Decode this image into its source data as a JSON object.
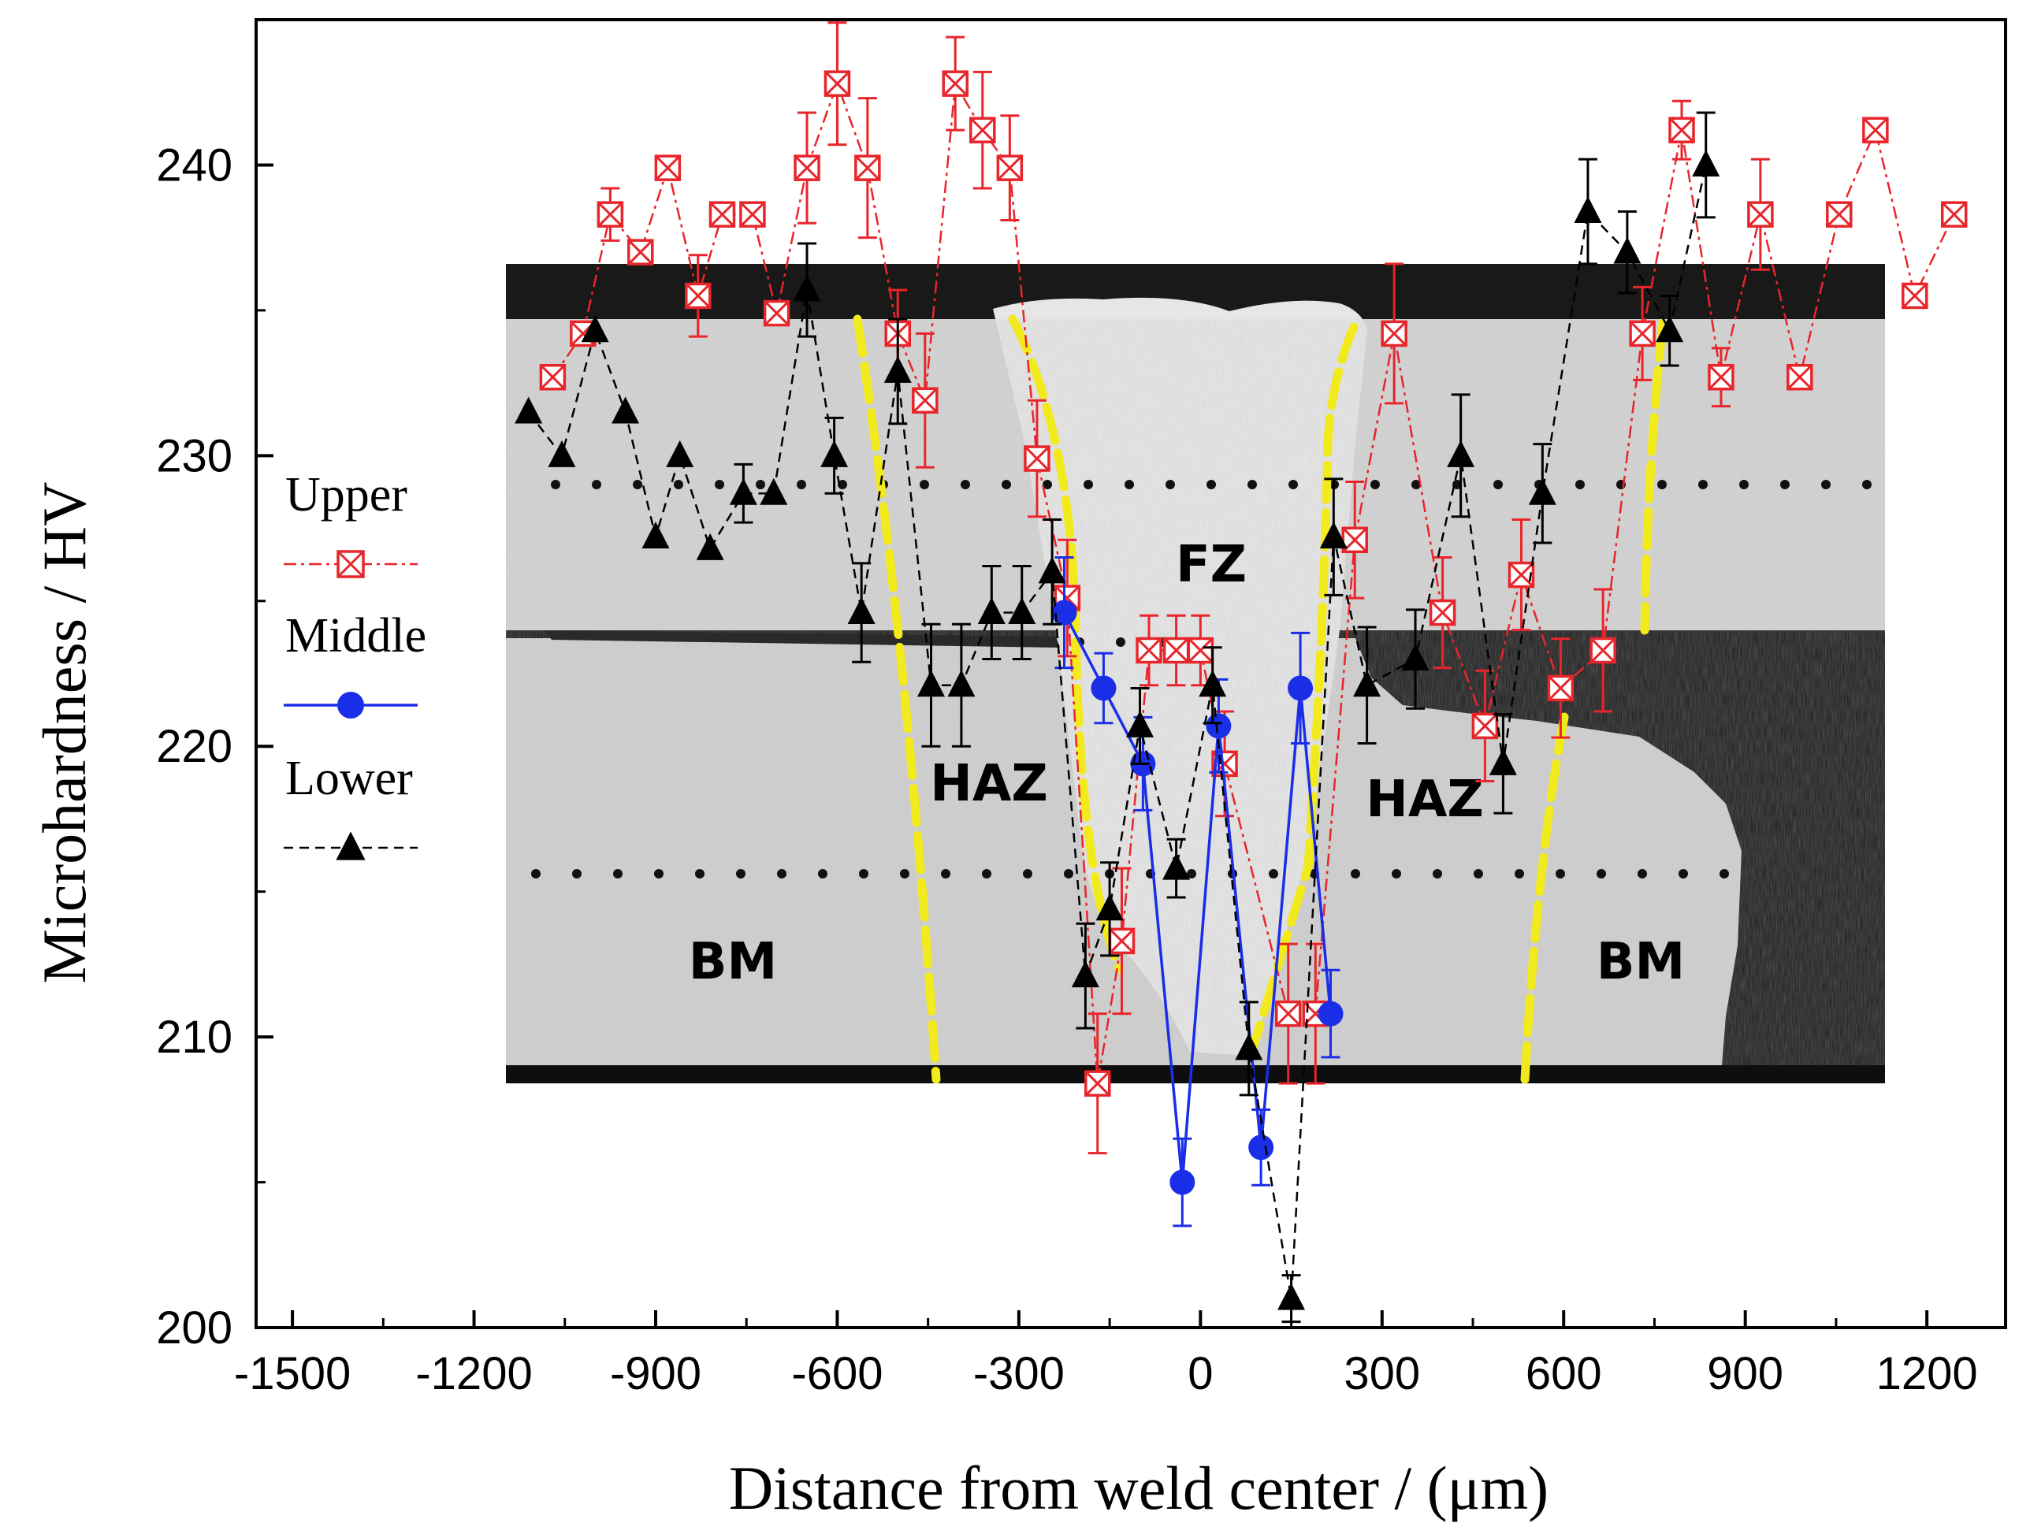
{
  "chart_data": {
    "type": "scatter",
    "xlabel": "Distance from weld center / (μm)",
    "ylabel": "Microhardness / HV",
    "xlim": [
      -1560,
      1330
    ],
    "ylim": [
      200,
      245
    ],
    "xticks": [
      -1500,
      -1200,
      -900,
      -600,
      -300,
      0,
      300,
      600,
      900,
      1200
    ],
    "yticks": [
      200,
      210,
      220,
      230,
      240
    ],
    "grid": false,
    "legend": {
      "placement": "left"
    },
    "series": [
      {
        "name": "Upper",
        "color": "#e8252b",
        "marker": "crossed-square",
        "line": "dash-dot",
        "x": [
          -1070,
          -1020,
          -975,
          -925,
          -880,
          -830,
          -790,
          -740,
          -700,
          -650,
          -600,
          -550,
          -500,
          -455,
          -405,
          -360,
          -315,
          -270,
          -220,
          -170,
          -130,
          -85,
          -40,
          0,
          40,
          145,
          190,
          255,
          320,
          400,
          470,
          530,
          595,
          665,
          730,
          795,
          860,
          925,
          990,
          1055,
          1115,
          1180,
          1245
        ],
        "y": [
          232.7,
          234.2,
          238.3,
          237.0,
          239.9,
          235.5,
          238.3,
          238.3,
          234.9,
          239.9,
          242.8,
          239.9,
          234.2,
          231.9,
          242.8,
          241.2,
          239.9,
          229.9,
          225.1,
          208.4,
          213.3,
          223.3,
          223.3,
          223.3,
          219.4,
          210.8,
          210.8,
          227.1,
          234.2,
          224.6,
          220.7,
          225.9,
          222.0,
          223.3,
          234.2,
          241.2,
          232.7,
          238.3,
          232.7,
          238.3,
          241.2,
          235.5,
          238.3
        ],
        "err": [
          0,
          0,
          0.9,
          0,
          0,
          1.4,
          0,
          0,
          0,
          1.9,
          2.1,
          2.4,
          1.5,
          2.3,
          1.6,
          2.0,
          1.8,
          2.0,
          2.0,
          2.4,
          2.5,
          1.2,
          1.2,
          1.2,
          1.8,
          2.4,
          2.4,
          2.0,
          2.4,
          1.9,
          1.9,
          1.9,
          1.7,
          2.1,
          1.6,
          1.0,
          1.0,
          1.9,
          0,
          0,
          0,
          0,
          0
        ]
      },
      {
        "name": "Middle",
        "color": "#1a2ee8",
        "marker": "circle",
        "line": "solid",
        "x": [
          -225,
          -160,
          -95,
          -30,
          30,
          100,
          165,
          215
        ],
        "y": [
          224.6,
          222.0,
          219.4,
          205.0,
          220.7,
          206.2,
          222.0,
          210.8
        ],
        "err": [
          1.9,
          1.2,
          1.6,
          1.5,
          1.6,
          1.3,
          1.9,
          1.5
        ]
      },
      {
        "name": "Lower",
        "color": "#000000",
        "marker": "triangle",
        "line": "dash",
        "x": [
          -1110,
          -1055,
          -1000,
          -950,
          -900,
          -860,
          -810,
          -755,
          -705,
          -650,
          -605,
          -560,
          -500,
          -445,
          -395,
          -345,
          -295,
          -245,
          -190,
          -150,
          -100,
          -40,
          20,
          80,
          150,
          220,
          275,
          355,
          430,
          500,
          565,
          640,
          705,
          775,
          835
        ],
        "y": [
          231.5,
          230.0,
          234.3,
          231.5,
          227.2,
          230.0,
          226.8,
          228.7,
          228.7,
          235.7,
          230.0,
          224.6,
          232.9,
          222.1,
          222.1,
          224.6,
          224.6,
          226.0,
          212.1,
          214.4,
          220.7,
          215.8,
          222.1,
          209.6,
          201.0,
          227.2,
          222.1,
          223.0,
          230.0,
          219.4,
          228.7,
          238.4,
          237.0,
          234.3,
          240.0
        ],
        "err": [
          0,
          0,
          0,
          0,
          0,
          0,
          0,
          1.0,
          0,
          1.6,
          1.3,
          1.7,
          1.8,
          2.1,
          2.1,
          1.6,
          1.6,
          1.8,
          1.8,
          1.6,
          1.3,
          1.0,
          1.3,
          1.6,
          0.8,
          2.0,
          2.0,
          1.7,
          2.1,
          1.7,
          1.7,
          1.8,
          1.4,
          1.2,
          1.8
        ]
      }
    ],
    "annotations": [
      "FZ",
      "HAZ",
      "HAZ",
      "BM",
      "BM"
    ]
  }
}
